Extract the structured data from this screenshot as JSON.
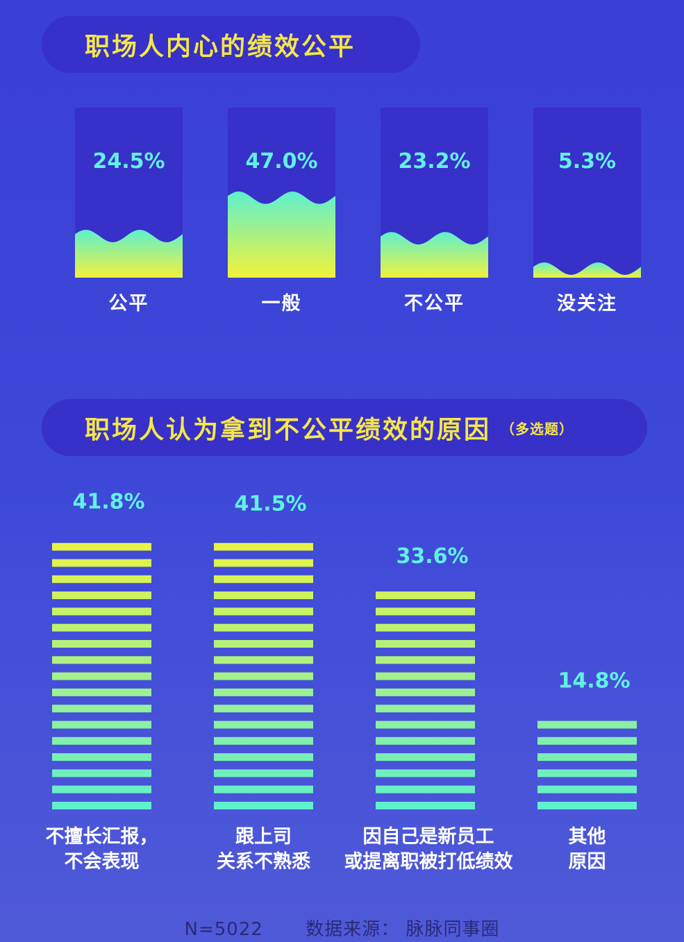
{
  "section1": {
    "title": "职场人内心的绩效公平"
  },
  "section2": {
    "title": "职场人认为拿到不公平绩效的原因",
    "subtitle": "（多选题）"
  },
  "chart_data": [
    {
      "type": "bar",
      "title": "职场人内心的绩效公平",
      "categories": [
        "公平",
        "一般",
        "不公平",
        "没关注"
      ],
      "values": [
        24.5,
        47.0,
        23.2,
        5.3
      ],
      "value_labels": [
        "24.5%",
        "47.0%",
        "23.2%",
        "5.3%"
      ],
      "ylim": [
        0,
        100
      ],
      "grid": false
    },
    {
      "type": "bar",
      "title": "职场人认为拿到不公平绩效的原因",
      "subtitle": "（多选题）",
      "categories": [
        [
          "不擅长汇报，",
          "不会表现"
        ],
        [
          "跟上司",
          "关系不熟悉"
        ],
        [
          "因自己是新员工",
          "或提离职被打低绩效"
        ],
        [
          "其他",
          "原因"
        ]
      ],
      "values": [
        41.8,
        41.5,
        33.6,
        14.8
      ],
      "value_labels": [
        "41.8%",
        "41.5%",
        "33.6%",
        "14.8%"
      ],
      "ylim": [
        0,
        45
      ],
      "grid": false
    }
  ],
  "footer": {
    "sample": "N=5022",
    "source": "数据来源：  脉脉同事圈"
  },
  "colors": {
    "background": "#3d48d8",
    "panel": "#3730c9",
    "title": "#f4e64a",
    "value_label": "#62f0e4",
    "category_label": "#ffffff",
    "gradient_top": "#5ef0ce",
    "gradient_bottom": "#f2f23a"
  }
}
